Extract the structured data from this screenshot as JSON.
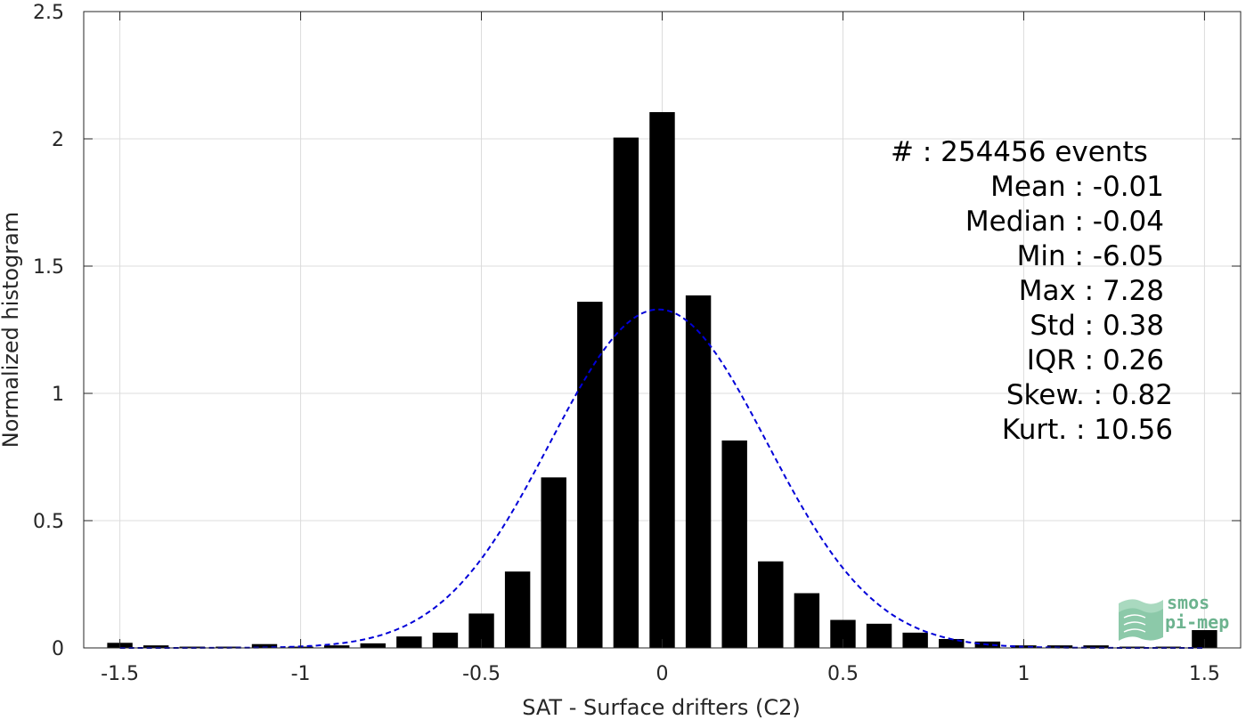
{
  "chart_data": {
    "type": "bar",
    "xlabel": "SAT - Surface drifters (C2)",
    "ylabel": "Normalized histogram",
    "xlim": [
      -1.6,
      1.6
    ],
    "ylim": [
      0,
      2.5
    ],
    "xticks": [
      "-1.5",
      "-1",
      "-0.5",
      "0",
      "0.5",
      "1",
      "1.5"
    ],
    "xtick_values": [
      -1.5,
      -1,
      -0.5,
      0,
      0.5,
      1,
      1.5
    ],
    "yticks": [
      "0",
      "0.5",
      "1",
      "1.5",
      "2",
      "2.5"
    ],
    "ytick_values": [
      0,
      0.5,
      1,
      1.5,
      2,
      2.5
    ],
    "grid": true,
    "bars": {
      "color": "#000000",
      "bin_width": 0.1,
      "x": [
        -1.5,
        -1.4,
        -1.3,
        -1.2,
        -1.1,
        -1.0,
        -0.9,
        -0.8,
        -0.7,
        -0.6,
        -0.5,
        -0.4,
        -0.3,
        -0.2,
        -0.1,
        0.0,
        0.1,
        0.2,
        0.3,
        0.4,
        0.5,
        0.6,
        0.7,
        0.8,
        0.9,
        1.0,
        1.1,
        1.2,
        1.3,
        1.4,
        1.5
      ],
      "values": [
        0.02,
        0.01,
        0.005,
        0.005,
        0.015,
        0.005,
        0.01,
        0.018,
        0.045,
        0.06,
        0.135,
        0.3,
        0.67,
        1.36,
        2.005,
        2.105,
        1.385,
        0.815,
        0.34,
        0.215,
        0.11,
        0.095,
        0.06,
        0.035,
        0.025,
        0.01,
        0.01,
        0.01,
        0.005,
        0.005,
        0.07
      ]
    },
    "gaussian_fit": {
      "style": "dashed",
      "color": "#0000d8",
      "mean": -0.01,
      "std": 0.3
    }
  },
  "stats": {
    "events": "#  : 254456 events",
    "mean": "Mean : -0.01",
    "median": "Median : -0.04",
    "min": "Min : -6.05",
    "max": "Max : 7.28",
    "std": "Std : 0.38",
    "iqr": "IQR : 0.26",
    "skew": "Skew. : 0.82",
    "kurt": "Kurt. : 10.56"
  },
  "logo": {
    "line1": "smos",
    "line2": "pi-mep",
    "color": "#6db38f"
  }
}
